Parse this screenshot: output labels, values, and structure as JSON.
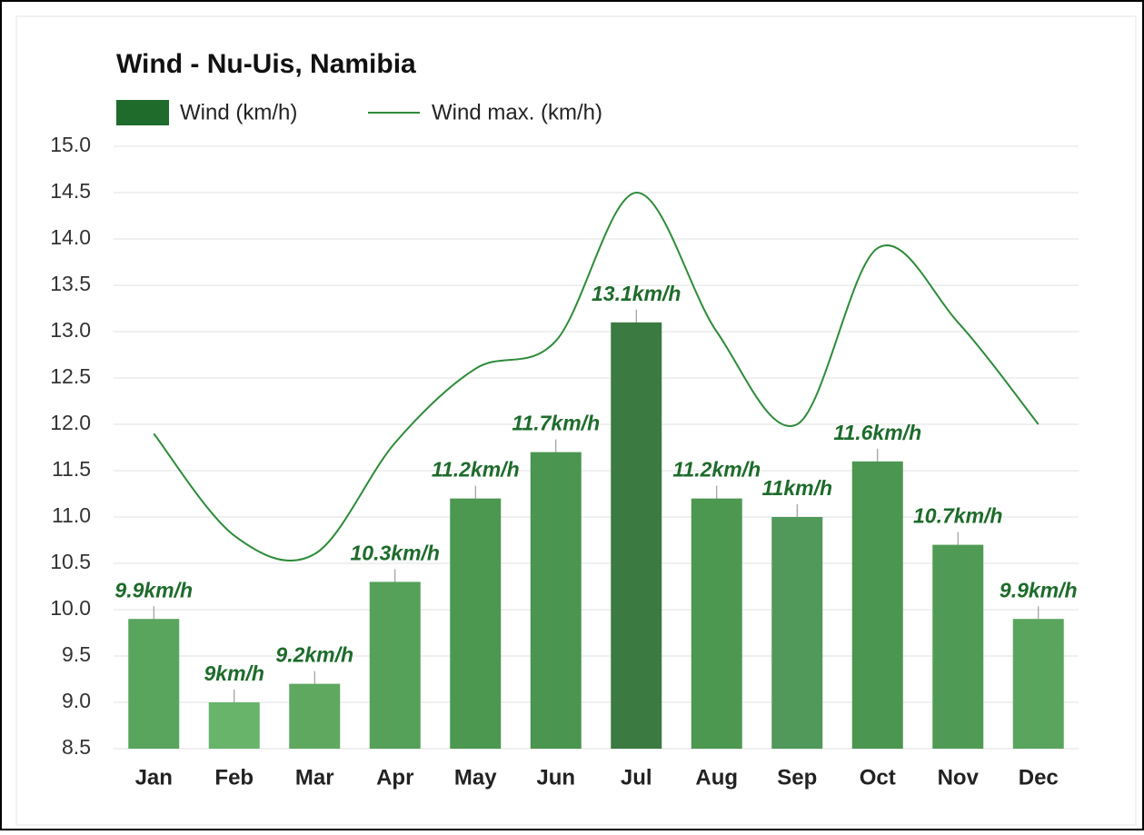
{
  "chart_data": {
    "type": "bar_line",
    "title": "Wind - Nu-Uis, Namibia",
    "categories": [
      "Jan",
      "Feb",
      "Mar",
      "Apr",
      "May",
      "Jun",
      "Jul",
      "Aug",
      "Sep",
      "Oct",
      "Nov",
      "Dec"
    ],
    "series": [
      {
        "name": "Wind (km/h)",
        "type": "bar",
        "color": "#1e6b2b",
        "colors": [
          "#5aa55e",
          "#67b46a",
          "#5ea860",
          "#55a159",
          "#4c9851",
          "#4a9550",
          "#3b7a40",
          "#4c9851",
          "#50995a",
          "#4b9751",
          "#4f9b55",
          "#5aa55e"
        ],
        "values": [
          9.9,
          9,
          9.2,
          10.3,
          11.2,
          11.7,
          13.1,
          11.2,
          11,
          11.6,
          10.7,
          9.9
        ],
        "value_labels": [
          "9.9km/h",
          "9km/h",
          "9.2km/h",
          "10.3km/h",
          "11.2km/h",
          "11.7km/h",
          "13.1km/h",
          "11.2km/h",
          "11km/h",
          "11.6km/h",
          "10.7km/h",
          "9.9km/h"
        ]
      },
      {
        "name": "Wind max. (km/h)",
        "type": "line",
        "color": "#2e8b3a",
        "values": [
          11.9,
          10.8,
          10.6,
          11.8,
          12.6,
          12.9,
          14.5,
          13.0,
          12.0,
          13.9,
          13.1,
          12.0
        ]
      }
    ],
    "ylim": [
      8.5,
      15.0
    ],
    "yticks": [
      {
        "value": 8.5,
        "label": "8.5"
      },
      {
        "value": 9,
        "label": "9.0"
      },
      {
        "value": 9.5,
        "label": "9.5"
      },
      {
        "value": 10,
        "label": "10.0"
      },
      {
        "value": 10.5,
        "label": "10.5"
      },
      {
        "value": 11,
        "label": "11.0"
      },
      {
        "value": 11.5,
        "label": "11.5"
      },
      {
        "value": 12,
        "label": "12.0"
      },
      {
        "value": 12.5,
        "label": "12.5"
      },
      {
        "value": 13,
        "label": "13.0"
      },
      {
        "value": 13.5,
        "label": "13.5"
      },
      {
        "value": 14,
        "label": "14.0"
      },
      {
        "value": 14.5,
        "label": "14.5"
      },
      {
        "value": 15,
        "label": "15.0"
      }
    ],
    "grid": true
  }
}
